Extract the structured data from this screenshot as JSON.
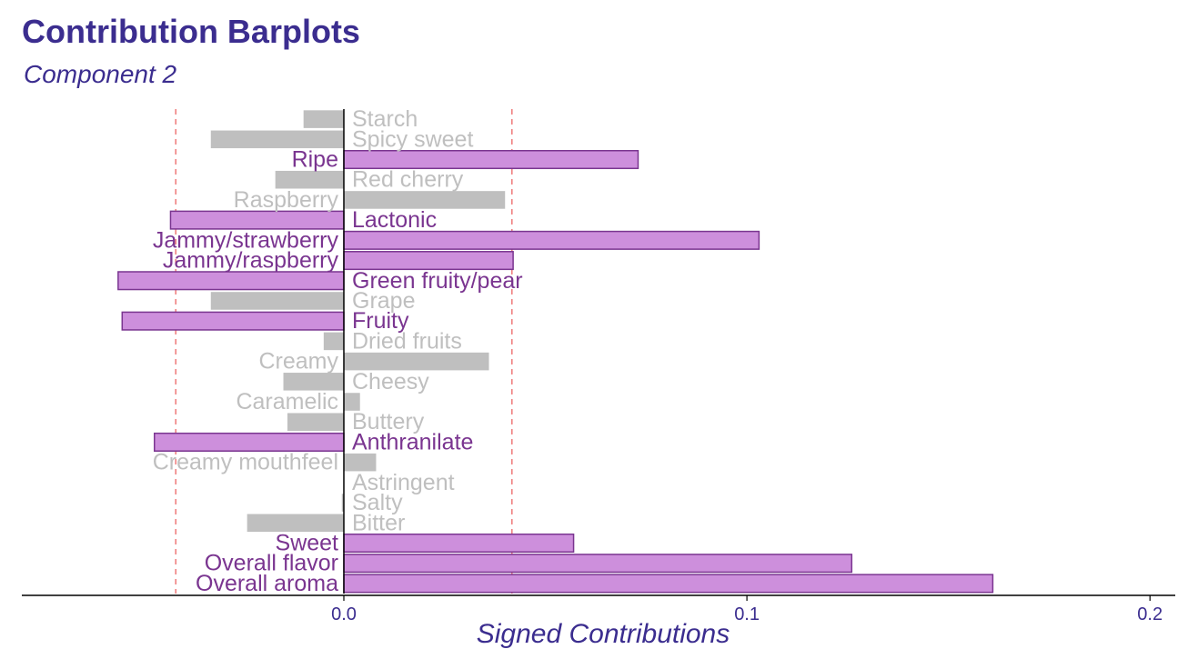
{
  "chart_data": {
    "type": "bar",
    "orientation": "horizontal",
    "title": "Contribution Barplots",
    "subtitle": "Component 2",
    "xlabel": "Signed Contributions",
    "ylabel": "",
    "xlim": [
      -0.08,
      0.207
    ],
    "xticks": [
      {
        "value": 0,
        "label": "0.0"
      },
      {
        "value": 0.1,
        "label": "0.1"
      },
      {
        "value": 0.2,
        "label": "0.2"
      }
    ],
    "threshold_lines": [
      -0.0417,
      0.0417
    ],
    "categories": [
      "Starch",
      "Spicy sweet",
      "Ripe",
      "Red cherry",
      "Raspberry",
      "Lactonic",
      "Jammy/strawberry",
      "Jammy/raspberry",
      "Green fruity/pear",
      "Grape",
      "Fruity",
      "Dried fruits",
      "Creamy",
      "Cheesy",
      "Caramelic",
      "Buttery",
      "Anthranilate",
      "Creamy mouthfeel",
      "Astringent",
      "Salty",
      "Bitter",
      "Sweet",
      "Overall flavor",
      "Overall aroma"
    ],
    "values": [
      -0.01,
      -0.033,
      0.073,
      -0.017,
      0.04,
      -0.043,
      0.103,
      0.042,
      -0.056,
      -0.033,
      -0.055,
      -0.005,
      0.036,
      -0.015,
      0.004,
      -0.014,
      -0.047,
      0.008,
      0.0,
      -0.0005,
      -0.024,
      0.057,
      0.126,
      0.161
    ],
    "important": [
      false,
      false,
      true,
      false,
      false,
      true,
      true,
      true,
      true,
      false,
      true,
      false,
      false,
      false,
      false,
      false,
      true,
      false,
      false,
      false,
      false,
      true,
      true,
      true
    ],
    "colors": {
      "important_fill": "#cd8fdc",
      "important_stroke": "#7a3590",
      "important_label": "#7a3590",
      "other_fill": "#bfbfbf",
      "other_label": "#bfbfbf",
      "threshold": "#f08080",
      "title": "#3b2d8f"
    }
  }
}
